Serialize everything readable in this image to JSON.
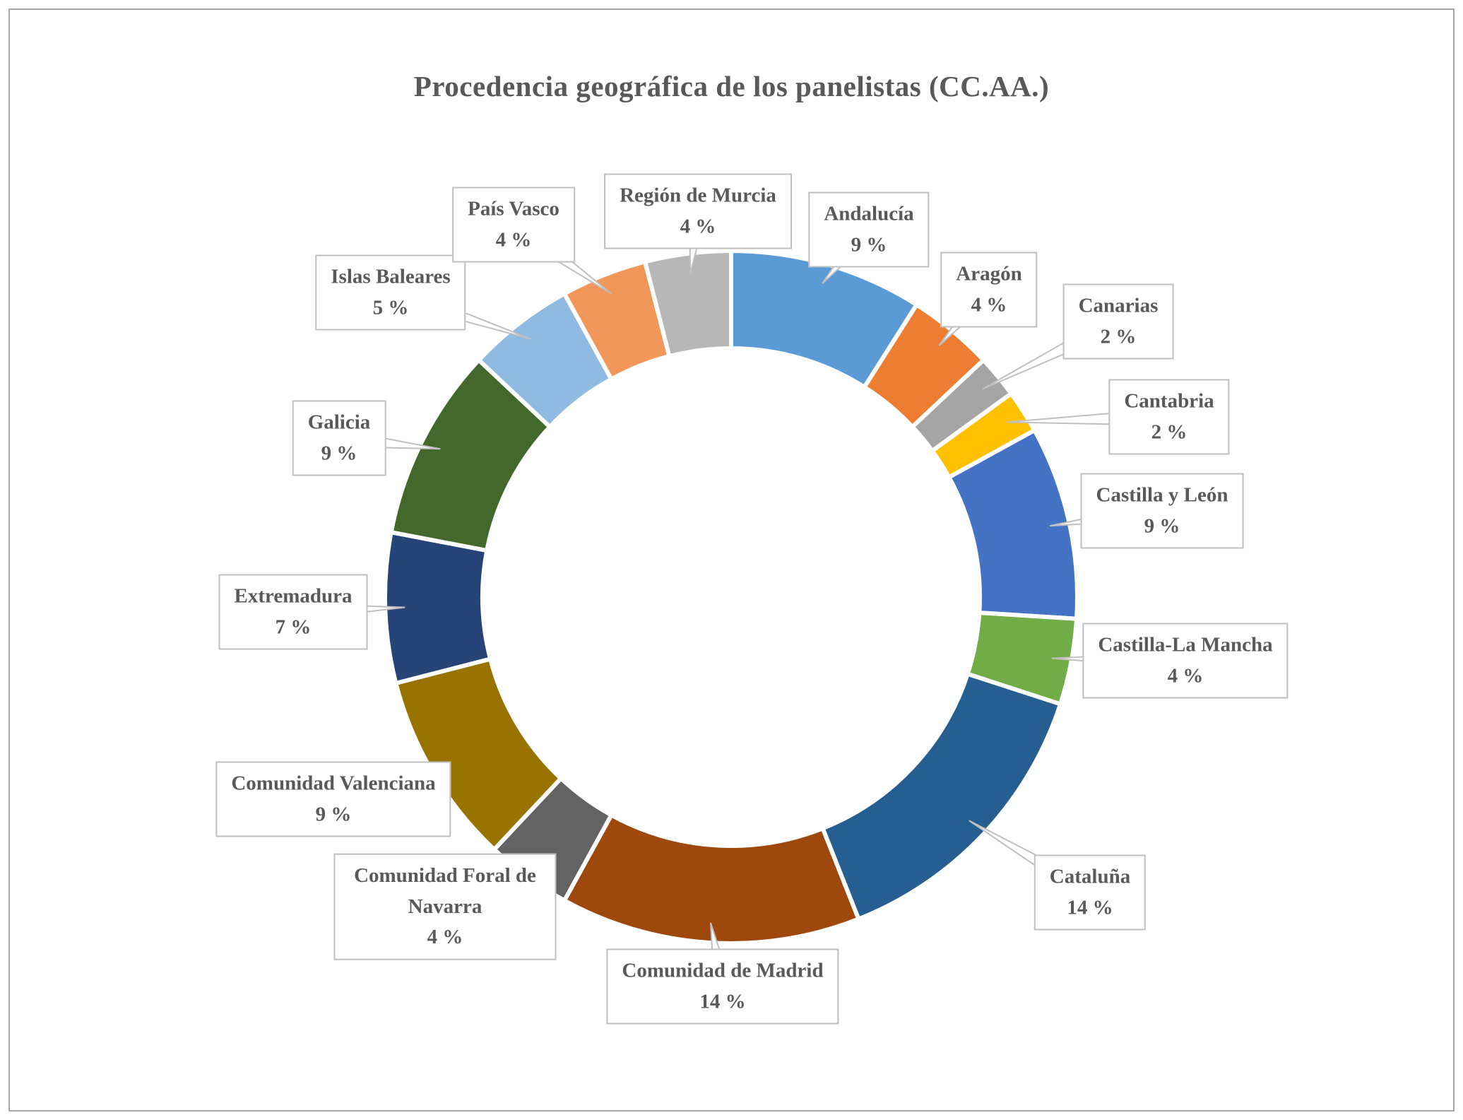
{
  "chart_data": {
    "type": "pie",
    "subtype": "donut",
    "title": "Procedencia geográfica de los panelistas (CC.AA.)",
    "unit": "%",
    "legend": "none",
    "labels_style": "callout-boxes",
    "slices": [
      {
        "label": "Andalucía",
        "value": 9,
        "value_text": "9 %",
        "color": "#5B9BD5"
      },
      {
        "label": "Aragón",
        "value": 4,
        "value_text": "4 %",
        "color": "#ED7D31"
      },
      {
        "label": "Canarias",
        "value": 2,
        "value_text": "2 %",
        "color": "#A5A5A5"
      },
      {
        "label": "Cantabria",
        "value": 2,
        "value_text": "2 %",
        "color": "#FFC000"
      },
      {
        "label": "Castilla y León",
        "value": 9,
        "value_text": "9 %",
        "color": "#4472C4"
      },
      {
        "label": "Castilla-La Mancha",
        "value": 4,
        "value_text": "4 %",
        "color": "#70AD47"
      },
      {
        "label": "Cataluña",
        "value": 14,
        "value_text": "14 %",
        "color": "#255E91"
      },
      {
        "label": "Comunidad de Madrid",
        "value": 14,
        "value_text": "14 %",
        "color": "#9E480E"
      },
      {
        "label": "Comunidad Foral de Navarra",
        "value": 4,
        "value_text": "4 %",
        "color": "#636363"
      },
      {
        "label": "Comunidad Valenciana",
        "value": 9,
        "value_text": "9 %",
        "color": "#997300"
      },
      {
        "label": "Extremadura",
        "value": 7,
        "value_text": "7 %",
        "color": "#264478"
      },
      {
        "label": "Galicia",
        "value": 9,
        "value_text": "9 %",
        "color": "#43682B"
      },
      {
        "label": "Islas Baleares",
        "value": 5,
        "value_text": "5 %",
        "color": "#8FBBE3"
      },
      {
        "label": "País Vasco",
        "value": 4,
        "value_text": "4 %",
        "color": "#F1975A"
      },
      {
        "label": "Región de Murcia",
        "value": 4,
        "value_text": "4 %",
        "color": "#B7B7B7"
      }
    ]
  }
}
